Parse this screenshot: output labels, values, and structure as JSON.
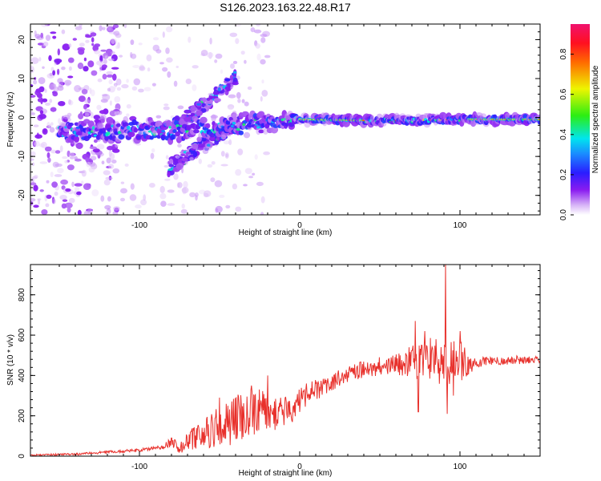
{
  "figure_title": "S126.2023.163.22.48.R17",
  "chart_data": [
    {
      "type": "heatmap",
      "title": "S126.2023.163.22.48.R17",
      "xlabel": "Height of straight line (km)",
      "ylabel": "Frequency (Hz)",
      "xlim": [
        -168,
        150
      ],
      "ylim": [
        -25,
        24
      ],
      "x_ticks": [
        -100,
        0,
        100
      ],
      "y_ticks": [
        -20,
        -10,
        0,
        10,
        20
      ],
      "colorbar": {
        "label": "Normalized spectral amplitude",
        "range": [
          0.0,
          0.95
        ],
        "ticks": [
          0.0,
          0.2,
          0.4,
          0.6,
          0.8
        ],
        "colormap": "rainbow (white-violet-blue-cyan-green-yellow-red-magenta)"
      },
      "features": {
        "main_band_center_hz": [
          {
            "x": -140,
            "y": -3.5
          },
          {
            "x": -120,
            "y": -3.5
          },
          {
            "x": -100,
            "y": -3
          },
          {
            "x": -80,
            "y": -3.5
          },
          {
            "x": -60,
            "y": -3
          },
          {
            "x": -40,
            "y": -2
          },
          {
            "x": -20,
            "y": -1.5
          },
          {
            "x": 0,
            "y": -0.5
          },
          {
            "x": 50,
            "y": -0.8
          },
          {
            "x": 100,
            "y": -0.5
          },
          {
            "x": 150,
            "y": -0.5
          }
        ],
        "upper_branch_hz": [
          {
            "x": -80,
            "y": -3
          },
          {
            "x": -60,
            "y": 3
          },
          {
            "x": -40,
            "y": 10
          }
        ],
        "lower_branch_hz": [
          {
            "x": -82,
            "y": -13
          },
          {
            "x": -60,
            "y": -7
          },
          {
            "x": -40,
            "y": -2
          }
        ],
        "strong_band_segments_km": [
          [
            0,
            40
          ],
          [
            105,
            150
          ]
        ]
      }
    },
    {
      "type": "line",
      "xlabel": "Height of straight line (km)",
      "ylabel": "SNR (10 * v/v)",
      "xlim": [
        -168,
        150
      ],
      "ylim": [
        0,
        950
      ],
      "x_ticks": [
        -100,
        0,
        100
      ],
      "y_ticks": [
        0,
        200,
        400,
        600,
        800
      ],
      "line_color": "#e8312c",
      "envelope": {
        "x": [
          -168,
          -140,
          -120,
          -100,
          -85,
          -80,
          -75,
          -65,
          -55,
          -45,
          -35,
          -25,
          -15,
          -5,
          5,
          15,
          25,
          35,
          45,
          55,
          65,
          75,
          85,
          95,
          105,
          115,
          130,
          150
        ],
        "y": [
          5,
          10,
          20,
          30,
          45,
          70,
          40,
          90,
          130,
          160,
          200,
          230,
          200,
          240,
          310,
          350,
          390,
          420,
          440,
          450,
          460,
          470,
          470,
          470,
          460,
          470,
          475,
          480
        ]
      },
      "noise_amplitude": {
        "x": [
          -168,
          -90,
          -75,
          -65,
          -40,
          -20,
          0,
          30,
          60,
          80,
          100,
          110,
          150
        ],
        "y": [
          4,
          8,
          30,
          70,
          120,
          120,
          60,
          40,
          50,
          120,
          110,
          25,
          20
        ]
      },
      "spikes": [
        {
          "x": -80,
          "y": 90
        },
        {
          "x": -50,
          "y": 290
        },
        {
          "x": -30,
          "y": 350
        },
        {
          "x": -20,
          "y": 400
        },
        {
          "x": 72,
          "y": 670
        },
        {
          "x": 78,
          "y": 620
        },
        {
          "x": 85,
          "y": 580
        },
        {
          "x": 91,
          "y": 950
        },
        {
          "x": 92,
          "y": 210
        },
        {
          "x": 74,
          "y": 220
        },
        {
          "x": 96,
          "y": 300
        },
        {
          "x": 100,
          "y": 620
        }
      ]
    }
  ]
}
